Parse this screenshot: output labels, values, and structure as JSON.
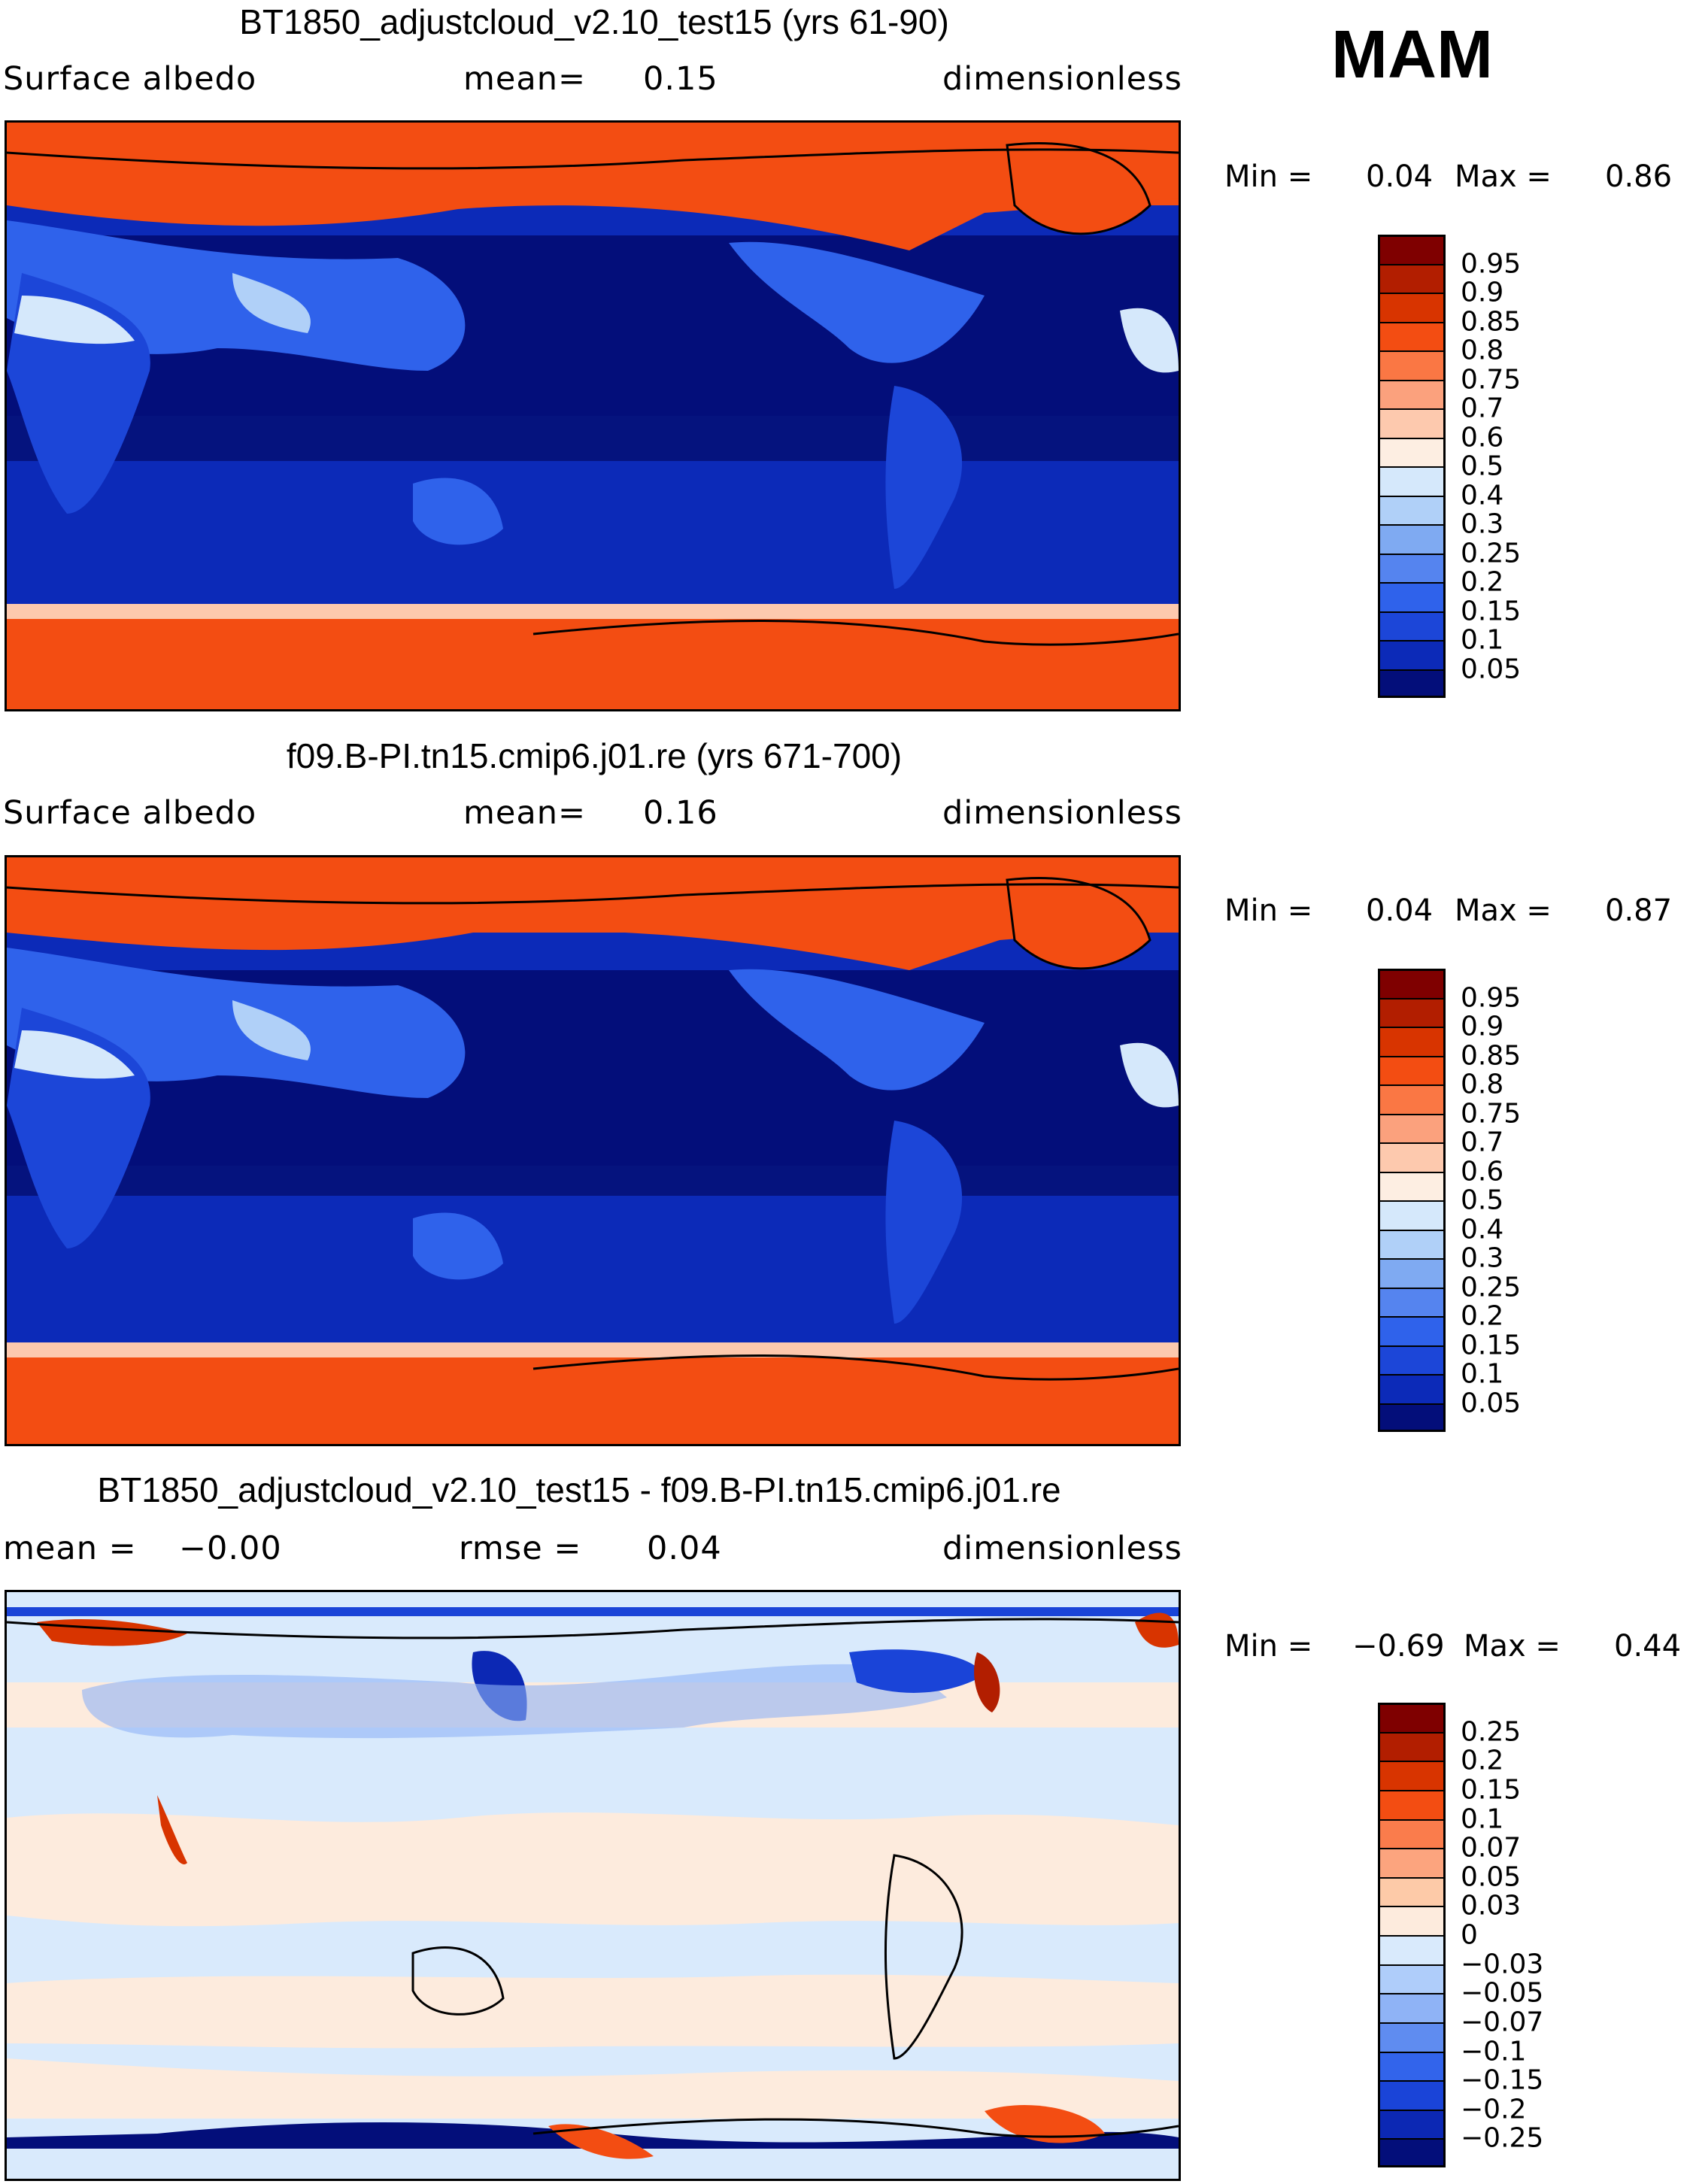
{
  "season": "MAM",
  "colors": {
    "ocean_deep": "#020a72",
    "ocean": "#0a2ab2",
    "land_blue": "#1f4fe6",
    "snow_orange": "#ff5020",
    "border": "#000000"
  },
  "chart_data": [
    {
      "type": "heatmap",
      "title": "BT1850_adjustcloud_v2.10_test15 (yrs 61-90)",
      "variable": "Surface albedo",
      "mean_label": "mean=",
      "mean": "0.15",
      "units": "dimensionless",
      "min_label": "Min =",
      "min": "0.04",
      "max_label": "Max =",
      "max": "0.86",
      "levels": [
        "0.95",
        "0.9",
        "0.85",
        "0.8",
        "0.75",
        "0.7",
        "0.6",
        "0.5",
        "0.4",
        "0.3",
        "0.25",
        "0.2",
        "0.15",
        "0.1",
        "0.05"
      ],
      "colors": [
        "#7f0000",
        "#b21e00",
        "#d83400",
        "#f34d12",
        "#fa7744",
        "#fba17d",
        "#fdc9ae",
        "#fdeee2",
        "#d5e8fb",
        "#b0d0f8",
        "#7faaf2",
        "#5584ef",
        "#2f62eb",
        "#1c46d8",
        "#0c2ab8",
        "#030e7a"
      ]
    },
    {
      "type": "heatmap",
      "title": "f09.B-PI.tn15.cmip6.j01.re (yrs 671-700)",
      "variable": "Surface albedo",
      "mean_label": "mean=",
      "mean": "0.16",
      "units": "dimensionless",
      "min_label": "Min =",
      "min": "0.04",
      "max_label": "Max =",
      "max": "0.87",
      "levels": [
        "0.95",
        "0.9",
        "0.85",
        "0.8",
        "0.75",
        "0.7",
        "0.6",
        "0.5",
        "0.4",
        "0.3",
        "0.25",
        "0.2",
        "0.15",
        "0.1",
        "0.05"
      ],
      "colors": [
        "#7f0000",
        "#b21e00",
        "#d83400",
        "#f34d12",
        "#fa7744",
        "#fba17d",
        "#fdc9ae",
        "#fdeee2",
        "#d5e8fb",
        "#b0d0f8",
        "#7faaf2",
        "#5584ef",
        "#2f62eb",
        "#1c46d8",
        "#0c2ab8",
        "#030e7a"
      ]
    },
    {
      "type": "heatmap",
      "title": "BT1850_adjustcloud_v2.10_test15 - f09.B-PI.tn15.cmip6.j01.re",
      "mean_label": "mean =",
      "mean": "−0.00",
      "rmse_label": "rmse =",
      "rmse": "0.04",
      "units": "dimensionless",
      "min_label": "Min =",
      "min": "−0.69",
      "max_label": "Max =",
      "max": "0.44",
      "levels": [
        "0.25",
        "0.2",
        "0.15",
        "0.1",
        "0.07",
        "0.05",
        "0.03",
        "0",
        "−0.03",
        "−0.05",
        "−0.07",
        "−0.1",
        "−0.15",
        "−0.2",
        "−0.25"
      ],
      "colors": [
        "#7f0000",
        "#b21e00",
        "#d83400",
        "#f34d12",
        "#fa7c4c",
        "#fca47e",
        "#fdcaa8",
        "#fdebdd",
        "#d9eafc",
        "#afcdfa",
        "#8fb3f6",
        "#5f8cf0",
        "#3264eb",
        "#1a44d8",
        "#0c28b4",
        "#030e7a"
      ]
    }
  ]
}
